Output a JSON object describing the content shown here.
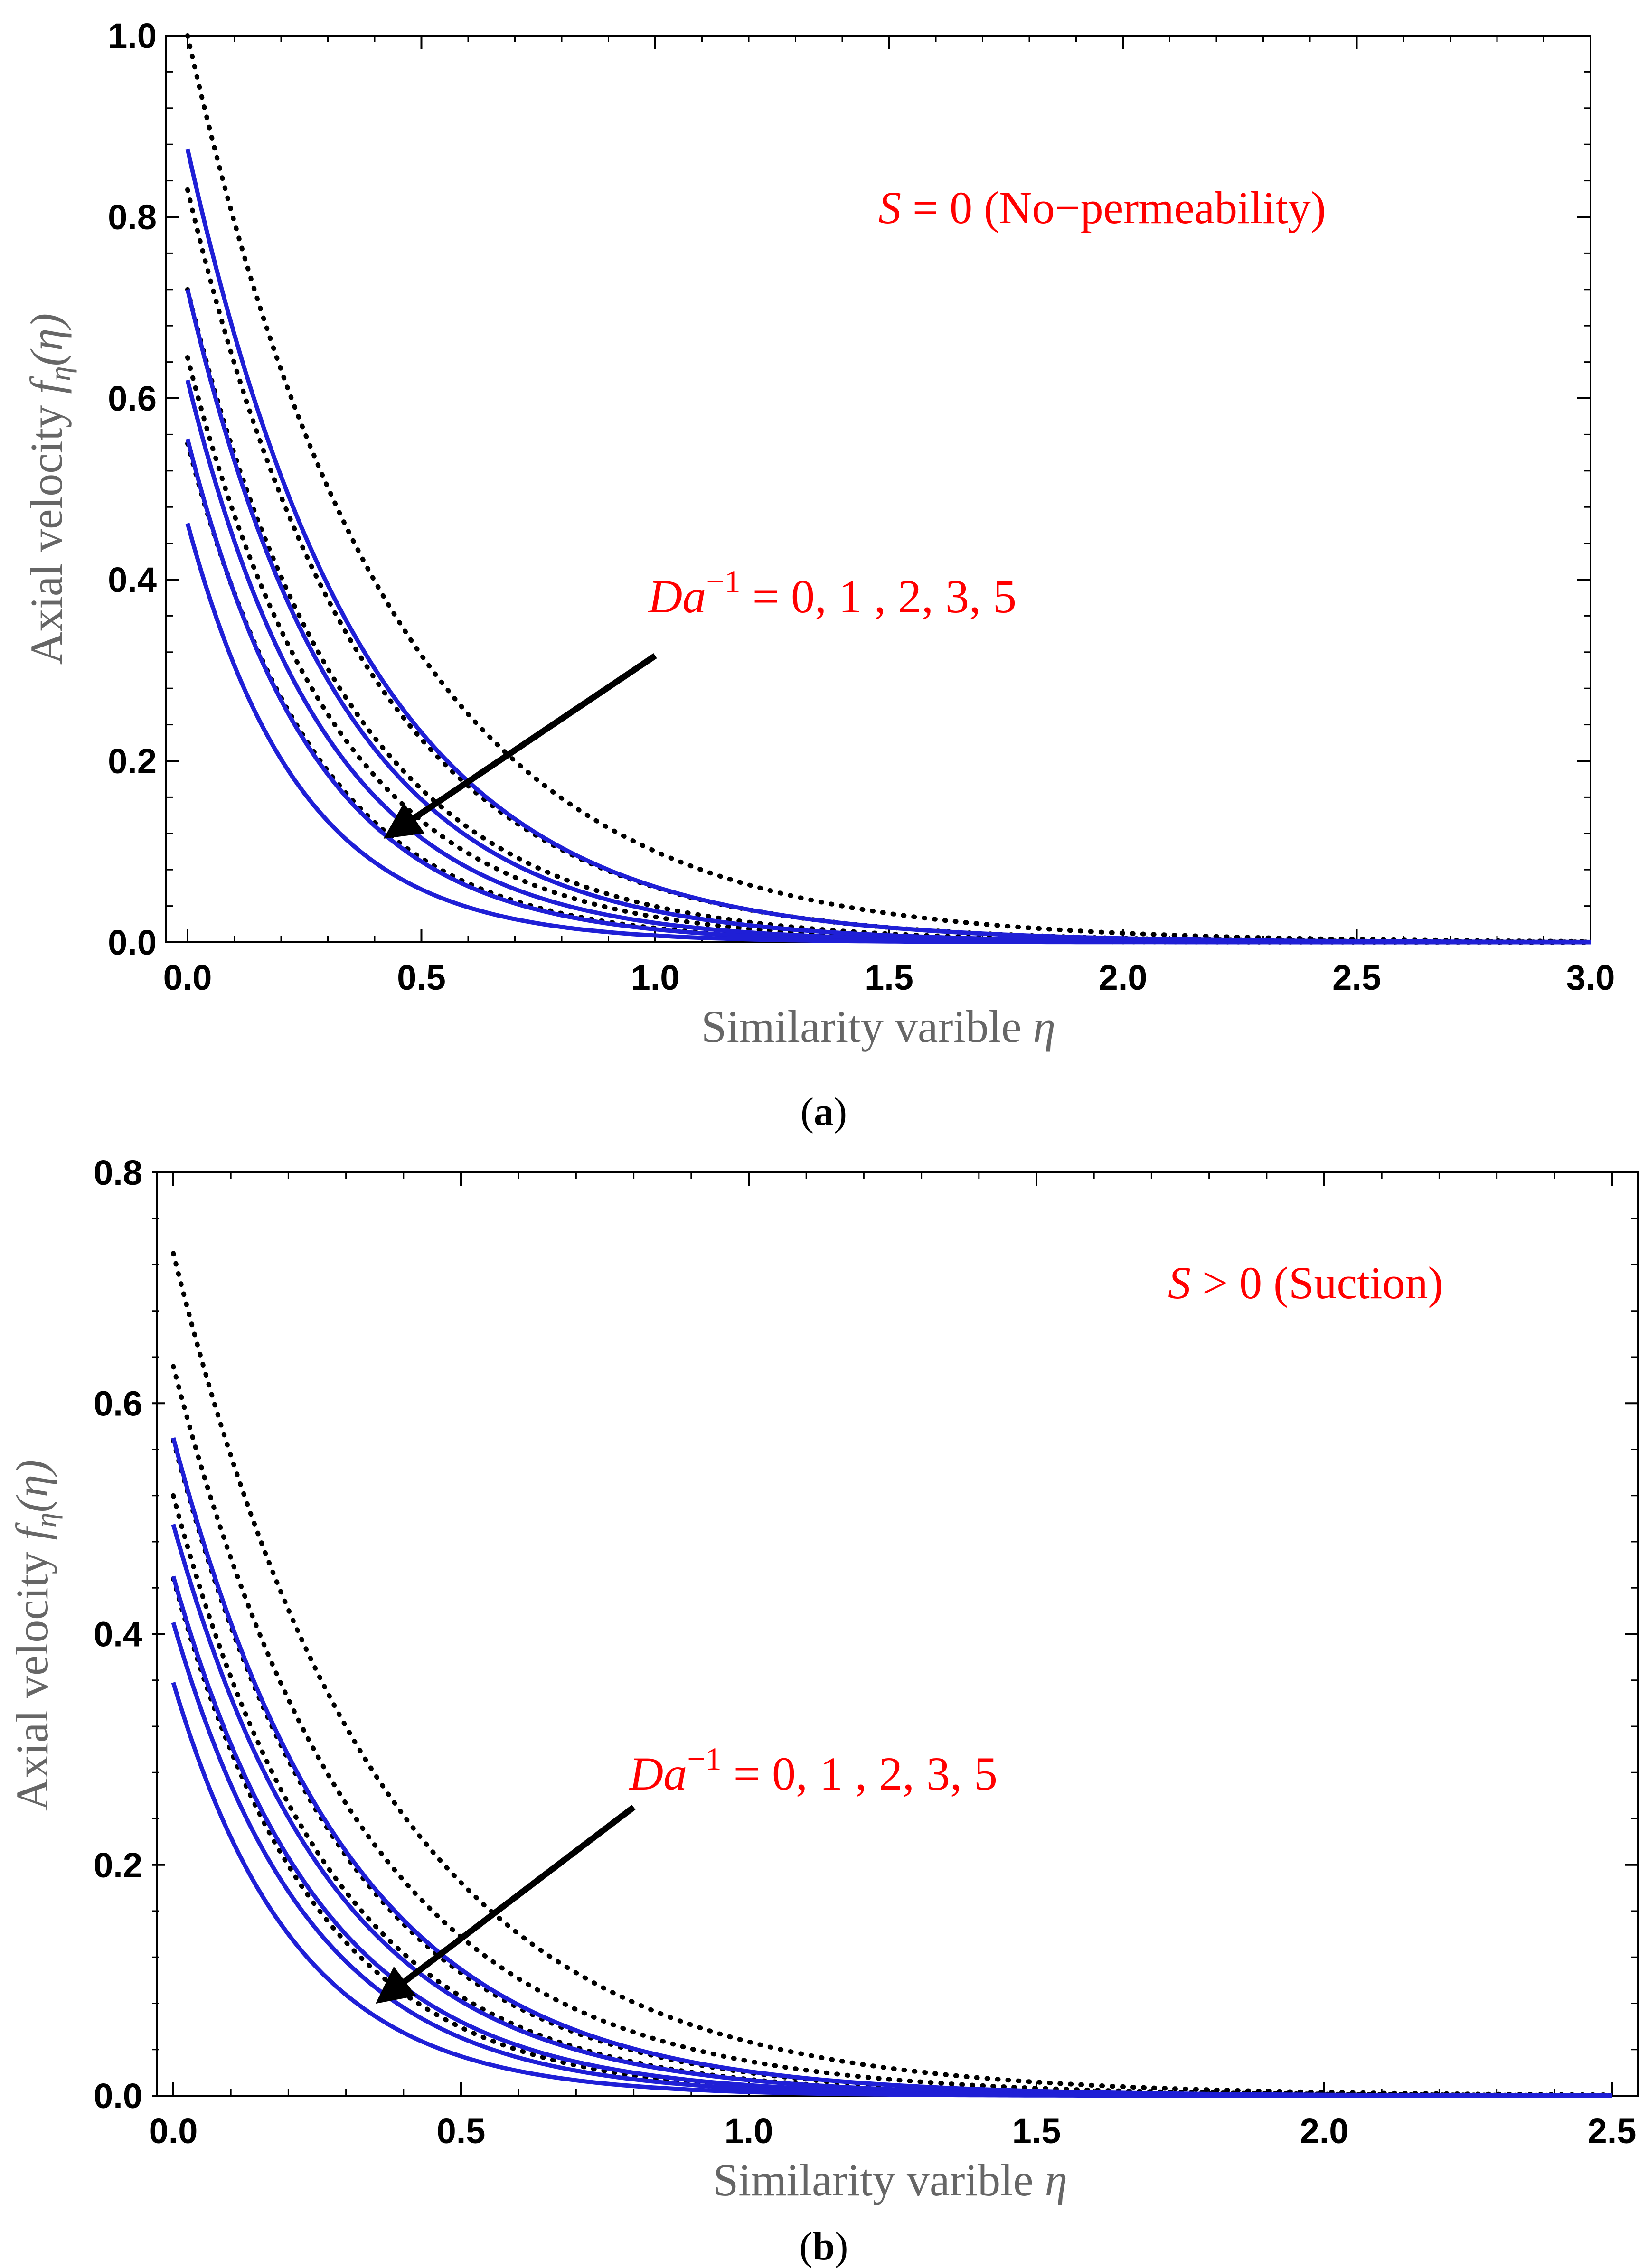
{
  "chart_data": [
    {
      "type": "line",
      "panel_label": "a",
      "xlabel": "Similarity varible",
      "xlabel_symbol": "η",
      "ylabel": "Axial velocity",
      "ylabel_symbol": "f",
      "ylabel_sub": "η",
      "ylabel_arg": "(η)",
      "xlim": [
        0,
        3
      ],
      "ylim": [
        0,
        1
      ],
      "xticks": [
        "0.0",
        "0.5",
        "1.0",
        "1.5",
        "2.0",
        "2.5",
        "3.0"
      ],
      "yticks": [
        "0.0",
        "0.2",
        "0.4",
        "0.6",
        "0.8",
        "1.0"
      ],
      "annotation_condition": {
        "var": "S",
        "rest": " = 0",
        "desc": "(No−permeability)"
      },
      "annotation_param": {
        "var": "Da",
        "sup": "−1",
        "rest": " = 0, 1 , 2,  3, 5"
      },
      "arrow": {
        "from": [
          1.0,
          0.316
        ],
        "to": [
          0.43,
          0.118
        ]
      },
      "series": [
        {
          "name": "dotted, Da⁻¹=0",
          "style": "dotted",
          "f0": 1.0,
          "decay": 2.3
        },
        {
          "name": "dotted, Da⁻¹=1",
          "style": "dotted",
          "f0": 0.83,
          "decay": 2.62
        },
        {
          "name": "dotted, Da⁻¹=2",
          "style": "dotted",
          "f0": 0.72,
          "decay": 2.9
        },
        {
          "name": "dotted, Da⁻¹=3",
          "style": "dotted",
          "f0": 0.645,
          "decay": 3.14
        },
        {
          "name": "dotted, Da⁻¹=5",
          "style": "dotted",
          "f0": 0.55,
          "decay": 3.56
        },
        {
          "name": "solid, Da⁻¹=0",
          "style": "solid",
          "f0": 0.875,
          "decay": 2.66
        },
        {
          "name": "solid, Da⁻¹=1",
          "style": "solid",
          "f0": 0.72,
          "decay": 3.04
        },
        {
          "name": "solid, Da⁻¹=2",
          "style": "solid",
          "f0": 0.62,
          "decay": 3.37
        },
        {
          "name": "solid, Da⁻¹=3",
          "style": "solid",
          "f0": 0.555,
          "decay": 3.66
        },
        {
          "name": "solid, Da⁻¹=5",
          "style": "solid",
          "f0": 0.462,
          "decay": 4.14
        }
      ]
    },
    {
      "type": "line",
      "panel_label": "b",
      "xlabel": "Similarity varible",
      "xlabel_symbol": "η",
      "ylabel": "Axial velocity",
      "ylabel_symbol": "f",
      "ylabel_sub": "η",
      "ylabel_arg": "(η)",
      "xlim": [
        0,
        2.5
      ],
      "ylim": [
        0,
        0.8
      ],
      "xticks": [
        "0.0",
        "0.5",
        "1.0",
        "1.5",
        "2.0",
        "2.5"
      ],
      "yticks": [
        "0.0",
        "0.2",
        "0.4",
        "0.6",
        "0.8"
      ],
      "annotation_condition": {
        "var": "S",
        "rest": " > 0",
        "desc": "(Suction)"
      },
      "annotation_param": {
        "var": "Da",
        "sup": "−1",
        "rest": " = 0, 1 , 2,  3, 5"
      },
      "arrow": {
        "from": [
          0.8,
          0.25
        ],
        "to": [
          0.36,
          0.083
        ]
      },
      "series": [
        {
          "name": "dotted, Da⁻¹=0",
          "style": "dotted",
          "f0": 0.73,
          "decay": 2.75
        },
        {
          "name": "dotted, Da⁻¹=1",
          "style": "dotted",
          "f0": 0.632,
          "decay": 3.05
        },
        {
          "name": "dotted, Da⁻¹=2",
          "style": "dotted",
          "f0": 0.568,
          "decay": 3.35
        },
        {
          "name": "dotted, Da⁻¹=3",
          "style": "dotted",
          "f0": 0.52,
          "decay": 3.6
        },
        {
          "name": "dotted, Da⁻¹=5",
          "style": "dotted",
          "f0": 0.448,
          "decay": 4.05
        },
        {
          "name": "solid, Da⁻¹=0",
          "style": "solid",
          "f0": 0.57,
          "decay": 3.3
        },
        {
          "name": "solid, Da⁻¹=1",
          "style": "solid",
          "f0": 0.495,
          "decay": 3.6
        },
        {
          "name": "solid, Da⁻¹=2",
          "style": "solid",
          "f0": 0.45,
          "decay": 3.9
        },
        {
          "name": "solid, Da⁻¹=3",
          "style": "solid",
          "f0": 0.41,
          "decay": 4.2
        },
        {
          "name": "solid, Da⁻¹=5",
          "style": "solid",
          "f0": 0.358,
          "decay": 4.7
        }
      ]
    }
  ],
  "colors": {
    "solid": "#1f1fd6",
    "dotted": "#000000",
    "annotation": "#ff0000",
    "axis_title": "#666666"
  }
}
